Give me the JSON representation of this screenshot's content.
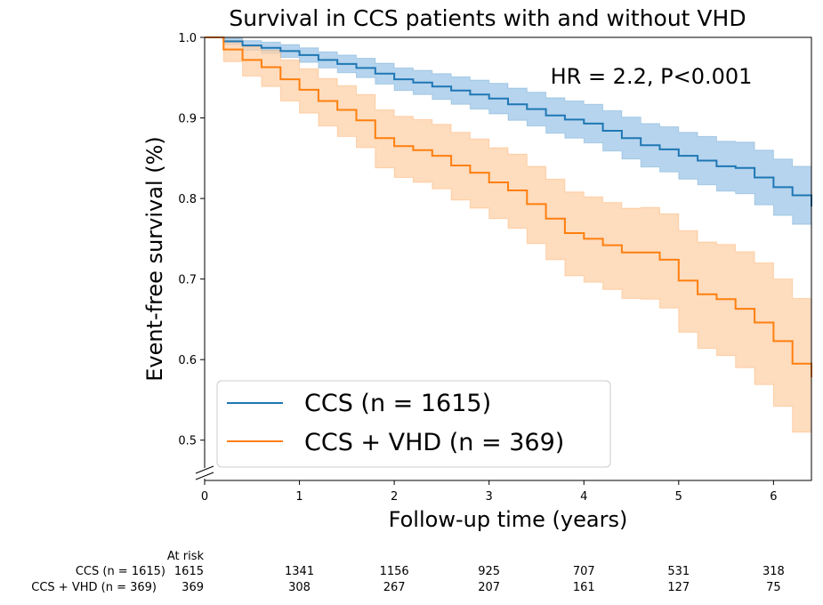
{
  "chart_data": {
    "type": "line",
    "title": "Survival in CCS patients with and without VHD",
    "xlabel": "Follow-up time (years)",
    "ylabel": "Event-free survival (%)",
    "xlim": [
      0,
      6.4
    ],
    "ylim": [
      0.45,
      1.0
    ],
    "xticks": [
      "0",
      "1",
      "2",
      "3",
      "4",
      "5",
      "6"
    ],
    "yticks": [
      "0.5",
      "0.6",
      "0.7",
      "0.8",
      "0.9",
      "1.0"
    ],
    "annotation": "HR = 2.2, P<0.001",
    "legend_position": "lower-left",
    "series": [
      {
        "name": "CCS (n = 1615)",
        "color": "#1f77b4",
        "fill": "#9ec5e8",
        "x": [
          0,
          0.2,
          0.4,
          0.6,
          0.8,
          1.0,
          1.2,
          1.4,
          1.6,
          1.8,
          2.0,
          2.2,
          2.4,
          2.6,
          2.8,
          3.0,
          3.2,
          3.4,
          3.6,
          3.8,
          4.0,
          4.2,
          4.4,
          4.6,
          4.8,
          5.0,
          5.2,
          5.4,
          5.6,
          5.8,
          6.0,
          6.2,
          6.4
        ],
        "y": [
          1.0,
          0.995,
          0.99,
          0.987,
          0.983,
          0.978,
          0.972,
          0.967,
          0.962,
          0.955,
          0.948,
          0.944,
          0.939,
          0.934,
          0.929,
          0.924,
          0.917,
          0.911,
          0.903,
          0.898,
          0.893,
          0.884,
          0.875,
          0.866,
          0.861,
          0.853,
          0.847,
          0.84,
          0.838,
          0.826,
          0.814,
          0.804,
          0.79
        ],
        "lower": [
          1.0,
          0.991,
          0.984,
          0.98,
          0.975,
          0.969,
          0.962,
          0.956,
          0.95,
          0.942,
          0.934,
          0.929,
          0.923,
          0.917,
          0.911,
          0.905,
          0.897,
          0.89,
          0.881,
          0.875,
          0.869,
          0.859,
          0.849,
          0.839,
          0.833,
          0.824,
          0.817,
          0.809,
          0.806,
          0.792,
          0.779,
          0.768,
          0.758
        ],
        "upper": [
          1.0,
          0.999,
          0.996,
          0.994,
          0.991,
          0.987,
          0.982,
          0.978,
          0.974,
          0.968,
          0.962,
          0.959,
          0.955,
          0.951,
          0.947,
          0.943,
          0.937,
          0.932,
          0.925,
          0.921,
          0.917,
          0.909,
          0.901,
          0.893,
          0.889,
          0.882,
          0.877,
          0.871,
          0.87,
          0.86,
          0.849,
          0.84,
          0.822
        ]
      },
      {
        "name": "CCS + VHD (n = 369)",
        "color": "#ff7f0e",
        "fill": "#fdd0a8",
        "x": [
          0,
          0.2,
          0.4,
          0.6,
          0.8,
          1.0,
          1.2,
          1.4,
          1.6,
          1.8,
          2.0,
          2.2,
          2.4,
          2.6,
          2.8,
          3.0,
          3.2,
          3.4,
          3.6,
          3.8,
          4.0,
          4.2,
          4.4,
          4.6,
          4.8,
          5.0,
          5.2,
          5.4,
          5.6,
          5.8,
          6.0,
          6.2,
          6.4
        ],
        "y": [
          1.0,
          0.985,
          0.972,
          0.963,
          0.948,
          0.935,
          0.921,
          0.91,
          0.897,
          0.875,
          0.865,
          0.86,
          0.853,
          0.841,
          0.832,
          0.82,
          0.81,
          0.793,
          0.775,
          0.757,
          0.75,
          0.742,
          0.733,
          0.733,
          0.724,
          0.698,
          0.681,
          0.675,
          0.663,
          0.646,
          0.623,
          0.595,
          0.578
        ],
        "lower": [
          1.0,
          0.97,
          0.952,
          0.939,
          0.921,
          0.906,
          0.89,
          0.877,
          0.863,
          0.838,
          0.826,
          0.82,
          0.812,
          0.798,
          0.788,
          0.775,
          0.763,
          0.744,
          0.724,
          0.704,
          0.696,
          0.687,
          0.676,
          0.675,
          0.664,
          0.634,
          0.614,
          0.605,
          0.59,
          0.569,
          0.542,
          0.51,
          0.498
        ],
        "upper": [
          1.0,
          0.996,
          0.989,
          0.984,
          0.972,
          0.961,
          0.949,
          0.94,
          0.929,
          0.91,
          0.902,
          0.898,
          0.892,
          0.882,
          0.874,
          0.863,
          0.855,
          0.84,
          0.824,
          0.808,
          0.802,
          0.795,
          0.788,
          0.789,
          0.781,
          0.76,
          0.746,
          0.743,
          0.734,
          0.72,
          0.7,
          0.676,
          0.658
        ]
      }
    ],
    "at_risk": {
      "header": "At risk",
      "times": [
        0,
        1,
        2,
        3,
        4,
        5,
        6
      ],
      "rows": [
        {
          "label": "CCS (n = 1615)",
          "values": [
            "1615",
            "1341",
            "1156",
            "925",
            "707",
            "531",
            "318"
          ]
        },
        {
          "label": "CCS + VHD (n = 369)",
          "values": [
            "369",
            "308",
            "267",
            "207",
            "161",
            "127",
            "75"
          ]
        }
      ]
    }
  }
}
